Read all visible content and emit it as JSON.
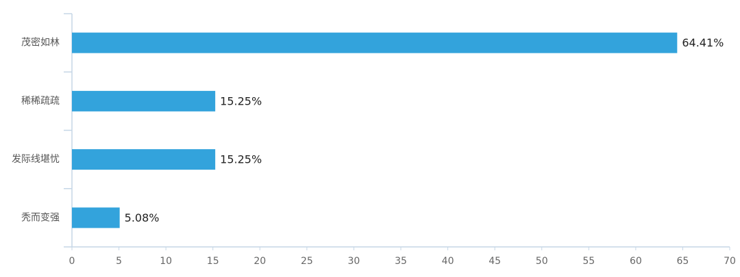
{
  "chart_data": {
    "type": "bar",
    "orientation": "horizontal",
    "categories": [
      "茂密如林",
      "稀稀疏疏",
      "发际线堪忧",
      "秃而变强"
    ],
    "values": [
      64.41,
      15.25,
      15.25,
      5.08
    ],
    "value_labels": [
      "64.41%",
      "15.25%",
      "15.25%",
      "5.08%"
    ],
    "color": "#33a3dc",
    "xlim": [
      0,
      70
    ],
    "xticks": [
      0,
      5,
      10,
      15,
      20,
      25,
      30,
      35,
      40,
      45,
      50,
      55,
      60,
      65,
      70
    ]
  }
}
